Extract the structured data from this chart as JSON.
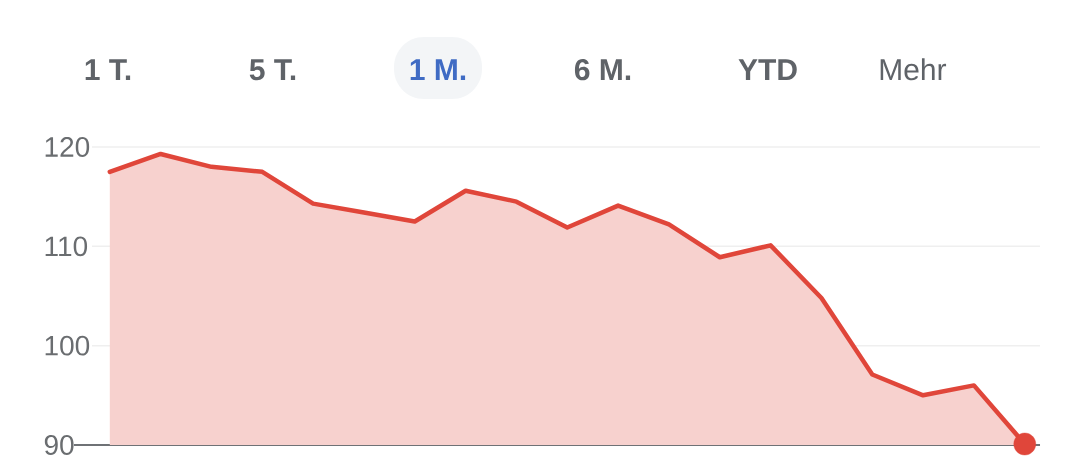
{
  "chart_data": {
    "type": "area",
    "annotations": [
      "1 T.",
      "5 T.",
      "1 M.",
      "6 M.",
      "YTD",
      "Mehr"
    ],
    "categories": [
      null,
      null,
      null,
      null,
      null,
      null,
      null,
      null,
      null,
      null,
      null,
      null,
      null,
      null,
      null,
      null,
      null,
      null,
      null
    ],
    "series": [
      {
        "color": "#e0463a",
        "values": [
          117.5,
          119.3,
          118.0,
          117.5,
          114.3,
          113.4,
          112.5,
          115.6,
          114.5,
          111.9,
          114.1,
          112.2,
          108.9,
          110.1,
          104.8,
          97.1,
          95.0,
          96.0,
          90.1
        ]
      },
      {
        "type": "scatter",
        "color": "#e0463a",
        "values": [
          null,
          null,
          null,
          null,
          null,
          null,
          null,
          null,
          null,
          null,
          null,
          null,
          null,
          null,
          null,
          null,
          null,
          null,
          90.1
        ]
      }
    ],
    "ylim": [
      90,
      120
    ],
    "yticks": [
      90,
      100,
      110,
      120
    ],
    "grid": "y"
  }
}
